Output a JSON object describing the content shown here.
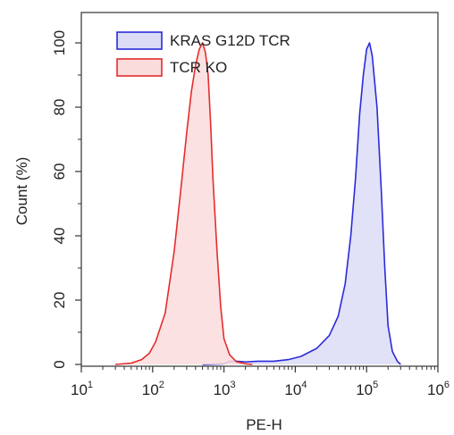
{
  "chart_data": {
    "type": "area",
    "xlabel": "PE-H",
    "ylabel": "Count (%)",
    "xscale": "log10",
    "xlim": [
      10,
      1000000
    ],
    "ylim": [
      0,
      110
    ],
    "x_ticks": [
      {
        "base": "10",
        "exp": "1",
        "value": 10
      },
      {
        "base": "10",
        "exp": "2",
        "value": 100
      },
      {
        "base": "10",
        "exp": "3",
        "value": 1000
      },
      {
        "base": "10",
        "exp": "4",
        "value": 10000
      },
      {
        "base": "10",
        "exp": "5",
        "value": 100000
      },
      {
        "base": "10",
        "exp": "6",
        "value": 1000000
      }
    ],
    "y_ticks": [
      "0",
      "20",
      "40",
      "60",
      "80",
      "100"
    ],
    "y_tick_values": [
      0,
      20,
      40,
      60,
      80,
      100
    ],
    "legend_position": "top-left",
    "series": [
      {
        "name": "KRAS G12D TCR",
        "stroke": "#2b2bd9",
        "fill": "#dcdcf7",
        "points": [
          [
            500,
            0.0
          ],
          [
            1000,
            0.2
          ],
          [
            1200,
            1.0
          ],
          [
            1500,
            1.0
          ],
          [
            2000,
            0.8
          ],
          [
            3000,
            1.0
          ],
          [
            5000,
            1.0
          ],
          [
            8000,
            1.5
          ],
          [
            12000,
            2.5
          ],
          [
            20000,
            5
          ],
          [
            30000,
            9
          ],
          [
            40000,
            15
          ],
          [
            50000,
            25
          ],
          [
            60000,
            40
          ],
          [
            70000,
            58
          ],
          [
            80000,
            78
          ],
          [
            90000,
            90
          ],
          [
            100000,
            98
          ],
          [
            110000,
            100
          ],
          [
            120000,
            96
          ],
          [
            140000,
            80
          ],
          [
            160000,
            55
          ],
          [
            180000,
            30
          ],
          [
            200000,
            12
          ],
          [
            230000,
            4
          ],
          [
            270000,
            1
          ],
          [
            300000,
            0
          ]
        ]
      },
      {
        "name": "TCR KO",
        "stroke": "#e52d2d",
        "fill": "#fadcdc",
        "points": [
          [
            30,
            0
          ],
          [
            50,
            0.4
          ],
          [
            70,
            1.5
          ],
          [
            90,
            3.5
          ],
          [
            110,
            7
          ],
          [
            150,
            16
          ],
          [
            200,
            35
          ],
          [
            250,
            55
          ],
          [
            300,
            72
          ],
          [
            350,
            85
          ],
          [
            400,
            93
          ],
          [
            450,
            98
          ],
          [
            500,
            100
          ],
          [
            550,
            97
          ],
          [
            600,
            90
          ],
          [
            650,
            75
          ],
          [
            700,
            58
          ],
          [
            800,
            35
          ],
          [
            900,
            18
          ],
          [
            1000,
            8
          ],
          [
            1200,
            3
          ],
          [
            1500,
            0.8
          ],
          [
            2000,
            0.2
          ],
          [
            2500,
            0
          ]
        ]
      }
    ]
  }
}
